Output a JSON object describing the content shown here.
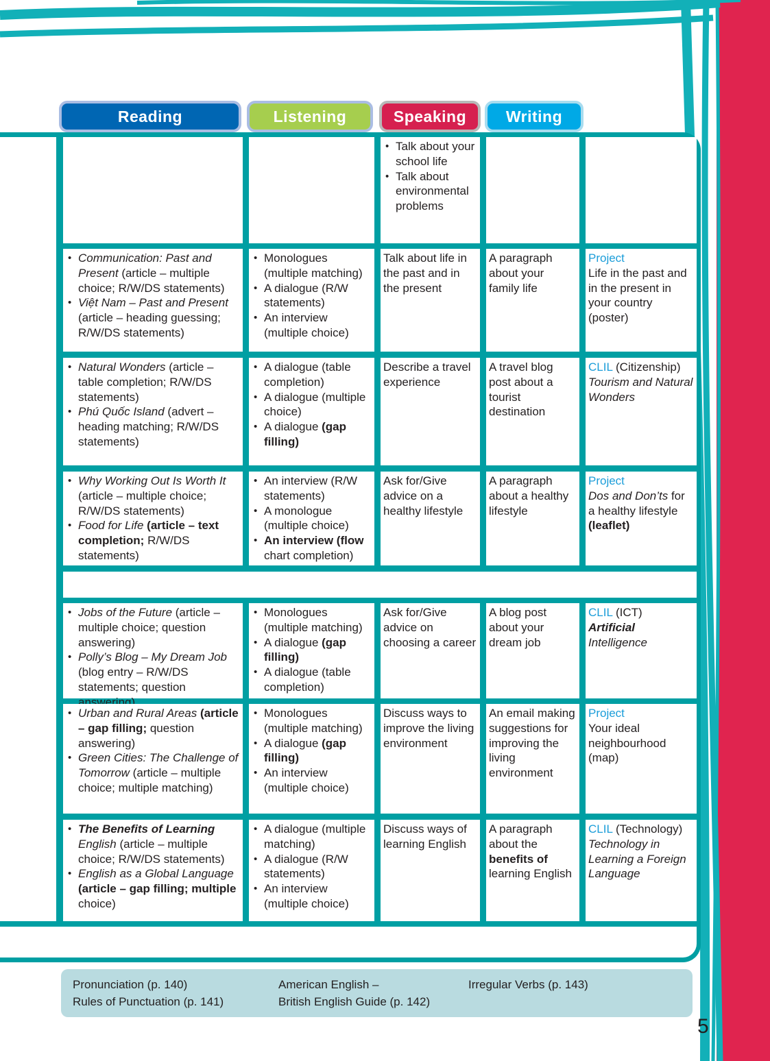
{
  "colors": {
    "frame": "#009fa3",
    "reading": "#0066b3",
    "listening": "#a6ce4e",
    "speaking": "#d6204f",
    "writing": "#00a9e6",
    "accent_text": "#1b9dd9",
    "footer_bg": "#b9dbe0",
    "side_band": "#e0244f"
  },
  "tabs": [
    {
      "label": "Reading"
    },
    {
      "label": "Listening"
    },
    {
      "label": "Speaking"
    },
    {
      "label": "Writing"
    }
  ],
  "rows": [
    {
      "cells": [
        [],
        [],
        [
          {
            "bullet": true,
            "parts": [
              {
                "t": "Talk about your school life"
              }
            ]
          },
          {
            "bullet": true,
            "parts": [
              {
                "t": "Talk about environmental problems"
              }
            ]
          }
        ],
        [],
        []
      ]
    },
    {
      "cells": [
        [
          {
            "bullet": true,
            "parts": [
              {
                "t": "Communication: Past and Present",
                "s": "i"
              },
              {
                "t": " (article – multiple choice; R/W/DS statements)"
              }
            ]
          },
          {
            "bullet": true,
            "parts": [
              {
                "t": "Việt Nam – Past and Present",
                "s": "i"
              },
              {
                "t": " (article – heading guessing; R/W/DS statements)"
              }
            ]
          }
        ],
        [
          {
            "bullet": true,
            "parts": [
              {
                "t": "Monologues (multiple matching)"
              }
            ]
          },
          {
            "bullet": true,
            "parts": [
              {
                "t": "A dialogue (R/W statements)"
              }
            ]
          },
          {
            "bullet": true,
            "parts": [
              {
                "t": "An interview (multiple choice)"
              }
            ]
          }
        ],
        [
          {
            "bullet": false,
            "parts": [
              {
                "t": "Talk about life in the past and in the present"
              }
            ]
          }
        ],
        [
          {
            "bullet": false,
            "parts": [
              {
                "t": "A paragraph about your family life"
              }
            ]
          }
        ],
        [
          {
            "bullet": false,
            "parts": [
              {
                "t": "Project",
                "s": "c"
              }
            ]
          },
          {
            "bullet": false,
            "parts": [
              {
                "t": "Life in the past and in the present in your country (poster)"
              }
            ]
          }
        ]
      ]
    },
    {
      "cells": [
        [
          {
            "bullet": true,
            "parts": [
              {
                "t": "Natural Wonders",
                "s": "i"
              },
              {
                "t": " (article – table completion; R/W/DS statements)"
              }
            ]
          },
          {
            "bullet": true,
            "parts": [
              {
                "t": "Phú Quốc Island",
                "s": "i"
              },
              {
                "t": " (advert – heading matching; R/W/DS statements)"
              }
            ]
          }
        ],
        [
          {
            "bullet": true,
            "parts": [
              {
                "t": "A dialogue (table completion)"
              }
            ]
          },
          {
            "bullet": true,
            "parts": [
              {
                "t": "A dialogue (multiple choice)"
              }
            ]
          },
          {
            "bullet": true,
            "parts": [
              {
                "t": "A dialogue "
              },
              {
                "t": "(gap filling)",
                "s": "bd"
              }
            ]
          }
        ],
        [
          {
            "bullet": false,
            "parts": [
              {
                "t": "Describe a travel experience"
              }
            ]
          }
        ],
        [
          {
            "bullet": false,
            "parts": [
              {
                "t": "A travel blog post about a tourist destination"
              }
            ]
          }
        ],
        [
          {
            "bullet": false,
            "parts": [
              {
                "t": "CLIL",
                "s": "c"
              },
              {
                "t": " (Citizenship)"
              }
            ]
          },
          {
            "bullet": false,
            "parts": [
              {
                "t": "Tourism and Natural Wonders",
                "s": "i"
              }
            ]
          }
        ]
      ]
    },
    {
      "cells": [
        [
          {
            "bullet": true,
            "parts": [
              {
                "t": "Why Working Out Is Worth It",
                "s": "i"
              },
              {
                "t": " (article – multiple choice; R/W/DS statements)"
              }
            ]
          },
          {
            "bullet": true,
            "parts": [
              {
                "t": "Food for Life",
                "s": "i"
              },
              {
                "t": " (article – text completion;",
                "s": "bd"
              },
              {
                "t": " R/W/DS statements)"
              }
            ]
          }
        ],
        [
          {
            "bullet": true,
            "parts": [
              {
                "t": "An interview (R/W statements)"
              }
            ]
          },
          {
            "bullet": true,
            "parts": [
              {
                "t": "A monologue (multiple choice)"
              }
            ]
          },
          {
            "bullet": true,
            "parts": [
              {
                "t": "An interview (flow",
                "s": "bd"
              },
              {
                "t": " chart completion)"
              }
            ]
          }
        ],
        [
          {
            "bullet": false,
            "parts": [
              {
                "t": "Ask for/Give advice on a healthy lifestyle"
              }
            ]
          }
        ],
        [
          {
            "bullet": false,
            "parts": [
              {
                "t": "A paragraph about a healthy lifestyle"
              }
            ]
          }
        ],
        [
          {
            "bullet": false,
            "parts": [
              {
                "t": "Project",
                "s": "c"
              }
            ]
          },
          {
            "bullet": false,
            "parts": [
              {
                "t": "Dos and Don’ts",
                "s": "i"
              },
              {
                "t": " for a healthy lifestyle "
              },
              {
                "t": "(leaflet)",
                "s": "bd"
              }
            ]
          }
        ]
      ]
    },
    {
      "cells": [
        [
          {
            "bullet": true,
            "parts": [
              {
                "t": "Jobs of the Future",
                "s": "i"
              },
              {
                "t": " (article – multiple choice; question answering)"
              }
            ]
          },
          {
            "bullet": true,
            "parts": [
              {
                "t": "Polly’s Blog – My Dream Job",
                "s": "i"
              },
              {
                "t": " (blog entry – R/W/DS statements; question answering)"
              }
            ]
          }
        ],
        [
          {
            "bullet": true,
            "parts": [
              {
                "t": "Monologues (multiple matching)"
              }
            ]
          },
          {
            "bullet": true,
            "parts": [
              {
                "t": "A dialogue "
              },
              {
                "t": "(gap filling)",
                "s": "bd"
              }
            ]
          },
          {
            "bullet": true,
            "parts": [
              {
                "t": "A dialogue (table completion)"
              }
            ]
          }
        ],
        [
          {
            "bullet": false,
            "parts": [
              {
                "t": "Ask for/Give advice on choosing a career"
              }
            ]
          }
        ],
        [
          {
            "bullet": false,
            "parts": [
              {
                "t": "A blog post about your dream job"
              }
            ]
          }
        ],
        [
          {
            "bullet": false,
            "parts": [
              {
                "t": "CLIL",
                "s": "c"
              },
              {
                "t": " (ICT)"
              }
            ]
          },
          {
            "bullet": false,
            "parts": [
              {
                "t": "Artificial",
                "s": "bi"
              },
              {
                "t": " Intelligence",
                "s": "i"
              }
            ]
          }
        ]
      ]
    },
    {
      "cells": [
        [
          {
            "bullet": true,
            "parts": [
              {
                "t": "Urban and Rural Areas",
                "s": "i"
              },
              {
                "t": " (article – gap filling;",
                "s": "bd"
              },
              {
                "t": " question answering)"
              }
            ]
          },
          {
            "bullet": true,
            "parts": [
              {
                "t": "Green Cities: The Challenge of Tomorrow",
                "s": "i"
              },
              {
                "t": " (article – multiple choice; multiple matching)"
              }
            ]
          }
        ],
        [
          {
            "bullet": true,
            "parts": [
              {
                "t": "Monologues (multiple matching)"
              }
            ]
          },
          {
            "bullet": true,
            "parts": [
              {
                "t": "A dialogue "
              },
              {
                "t": "(gap filling)",
                "s": "bd"
              }
            ]
          },
          {
            "bullet": true,
            "parts": [
              {
                "t": "An interview (multiple choice)"
              }
            ]
          }
        ],
        [
          {
            "bullet": false,
            "parts": [
              {
                "t": "Discuss ways to improve the living environment"
              }
            ]
          }
        ],
        [
          {
            "bullet": false,
            "parts": [
              {
                "t": "An email making suggestions for improving the living environment"
              }
            ]
          }
        ],
        [
          {
            "bullet": false,
            "parts": [
              {
                "t": "Project",
                "s": "c"
              }
            ]
          },
          {
            "bullet": false,
            "parts": [
              {
                "t": "Your ideal neighbourhood (map)"
              }
            ]
          }
        ]
      ]
    },
    {
      "cells": [
        [
          {
            "bullet": true,
            "parts": [
              {
                "t": "The Benefits of Learning",
                "s": "bi"
              },
              {
                "t": " English",
                "s": "i"
              },
              {
                "t": " (article – multiple choice; R/W/DS statements)"
              }
            ]
          },
          {
            "bullet": true,
            "parts": [
              {
                "t": "English as a Global Language",
                "s": "i"
              },
              {
                "t": " (article – gap filling; multiple",
                "s": "bd"
              },
              {
                "t": " choice)"
              }
            ]
          }
        ],
        [
          {
            "bullet": true,
            "parts": [
              {
                "t": "A dialogue (multiple matching)"
              }
            ]
          },
          {
            "bullet": true,
            "parts": [
              {
                "t": "A dialogue (R/W statements)"
              }
            ]
          },
          {
            "bullet": true,
            "parts": [
              {
                "t": "An interview (multiple choice)"
              }
            ]
          }
        ],
        [
          {
            "bullet": false,
            "parts": [
              {
                "t": "Discuss ways of learning English"
              }
            ]
          }
        ],
        [
          {
            "bullet": false,
            "parts": [
              {
                "t": "A paragraph about the "
              },
              {
                "t": "benefits of",
                "s": "bd"
              },
              {
                "t": " learning English"
              }
            ]
          }
        ],
        [
          {
            "bullet": false,
            "parts": [
              {
                "t": "CLIL",
                "s": "c"
              },
              {
                "t": " (Technology)"
              }
            ]
          },
          {
            "bullet": false,
            "parts": [
              {
                "t": "Technology in Learning a Foreign Language",
                "s": "i"
              }
            ]
          }
        ]
      ]
    }
  ],
  "footer": {
    "col1": [
      "Pronunciation (p. 140)",
      "Rules of Punctuation (p. 141)"
    ],
    "col2": [
      "American English –",
      "British English Guide (p. 142)"
    ],
    "col3": [
      "Irregular Verbs (p. 143)"
    ]
  },
  "page_number": "5"
}
